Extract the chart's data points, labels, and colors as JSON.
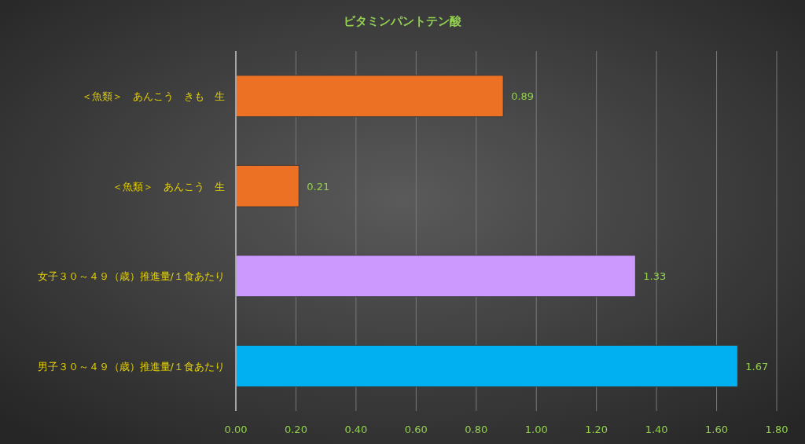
{
  "chart_data": {
    "type": "bar",
    "orientation": "horizontal",
    "title": "ビタミンパントテン酸",
    "categories": [
      "＜魚類＞　あんこう　きも　生",
      "＜魚類＞　あんこう　生",
      "女子３０～４９（歳）推進量/１食あたり",
      "男子３０～４９（歳）推進量/１食あたり"
    ],
    "values": [
      0.89,
      0.21,
      1.33,
      1.67
    ],
    "colors": [
      "#ed7125",
      "#ed7125",
      "#cc99ff",
      "#00b0f0"
    ],
    "xlim": [
      0,
      1.8
    ],
    "xticks": [
      {
        "value": 0,
        "label": "0.00"
      },
      {
        "value": 0.2,
        "label": "0.20"
      },
      {
        "value": 0.4,
        "label": "0.40"
      },
      {
        "value": 0.6,
        "label": "0.60"
      },
      {
        "value": 0.8,
        "label": "0.80"
      },
      {
        "value": 1,
        "label": "1.00"
      },
      {
        "value": 1.2,
        "label": "1.20"
      },
      {
        "value": 1.4,
        "label": "1.40"
      },
      {
        "value": 1.6,
        "label": "1.60"
      },
      {
        "value": 1.8,
        "label": "1.80"
      }
    ],
    "grid": "x",
    "data_labels": true
  }
}
